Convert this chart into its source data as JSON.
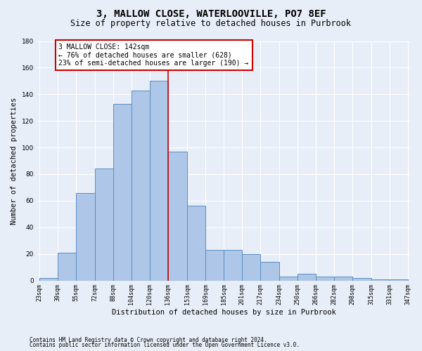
{
  "title_line1": "3, MALLOW CLOSE, WATERLOOVILLE, PO7 8EF",
  "title_line2": "Size of property relative to detached houses in Purbrook",
  "xlabel": "Distribution of detached houses by size in Purbrook",
  "ylabel": "Number of detached properties",
  "bar_values": [
    2,
    21,
    66,
    84,
    133,
    143,
    150,
    97,
    56,
    23,
    23,
    20,
    14,
    3,
    5,
    3,
    3,
    2,
    1,
    1
  ],
  "bin_edges": [
    23,
    39,
    55,
    72,
    88,
    104,
    120,
    136,
    153,
    169,
    185,
    201,
    217,
    234,
    250,
    266,
    282,
    298,
    315,
    331,
    347
  ],
  "tick_labels": [
    "23sqm",
    "39sqm",
    "55sqm",
    "72sqm",
    "88sqm",
    "104sqm",
    "120sqm",
    "136sqm",
    "153sqm",
    "169sqm",
    "185sqm",
    "201sqm",
    "217sqm",
    "234sqm",
    "250sqm",
    "266sqm",
    "282sqm",
    "298sqm",
    "315sqm",
    "331sqm",
    "347sqm"
  ],
  "bar_color": "#aec6e8",
  "bar_edge_color": "#5a8fc4",
  "marker_value": 136,
  "marker_color": "#cc0000",
  "annotation_text": "3 MALLOW CLOSE: 142sqm\n← 76% of detached houses are smaller (628)\n23% of semi-detached houses are larger (190) →",
  "annotation_box_color": "#ffffff",
  "annotation_box_edge_color": "#cc0000",
  "ylim": [
    0,
    180
  ],
  "yticks": [
    0,
    20,
    40,
    60,
    80,
    100,
    120,
    140,
    160,
    180
  ],
  "background_color": "#e8eef7",
  "grid_color": "#ffffff",
  "footnote_line1": "Contains HM Land Registry data © Crown copyright and database right 2024.",
  "footnote_line2": "Contains public sector information licensed under the Open Government Licence v3.0.",
  "title_fontsize": 10,
  "subtitle_fontsize": 8.5,
  "axis_label_fontsize": 7.5,
  "ylabel_fontsize": 7.5,
  "tick_fontsize": 6,
  "annotation_fontsize": 7,
  "footnote_fontsize": 5.5
}
